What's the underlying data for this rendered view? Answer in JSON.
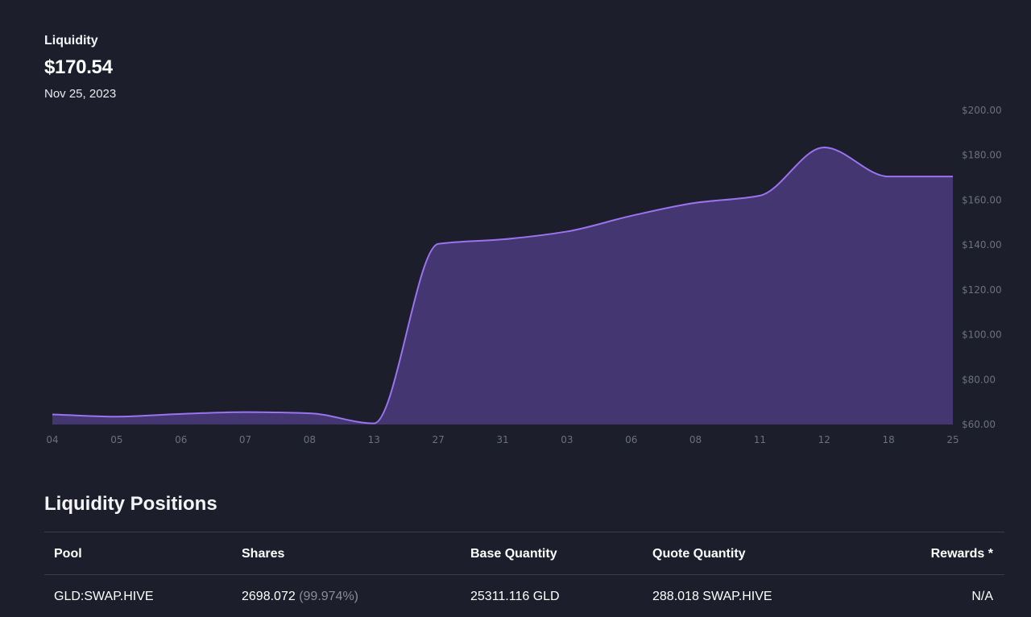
{
  "header": {
    "label": "Liquidity",
    "value": "$170.54",
    "date": "Nov 25, 2023"
  },
  "colors": {
    "background": "#1c1f2b",
    "line": "#9b73f0",
    "area": "#433671",
    "axis_text": "#6c6f7d"
  },
  "chart_data": {
    "type": "area",
    "x": [
      "04",
      "05",
      "06",
      "07",
      "08",
      "13",
      "27",
      "31",
      "03",
      "06",
      "08",
      "11",
      "12",
      "18",
      "25"
    ],
    "values": [
      64.5,
      63.5,
      64.7,
      65.5,
      65,
      60.5,
      140.5,
      142.5,
      146,
      153,
      158.8,
      162,
      183.5,
      170.5,
      170.5
    ],
    "ylim": [
      60,
      200
    ],
    "yticks": [
      "$200.00",
      "$180.00",
      "$160.00",
      "$140.00",
      "$120.00",
      "$100.00",
      "$80.00",
      "$60.00"
    ],
    "grid": false,
    "title": "",
    "xlabel": "",
    "ylabel": ""
  },
  "positions": {
    "title": "Liquidity Positions",
    "headers": [
      "Pool",
      "Shares",
      "Base Quantity",
      "Quote Quantity",
      "Rewards *"
    ],
    "rows": [
      {
        "pool": "GLD:SWAP.HIVE",
        "shares": "2698.072",
        "shares_pct": "(99.974%)",
        "base": "25311.116 GLD",
        "quote": "288.018 SWAP.HIVE",
        "rewards": "N/A"
      }
    ]
  }
}
